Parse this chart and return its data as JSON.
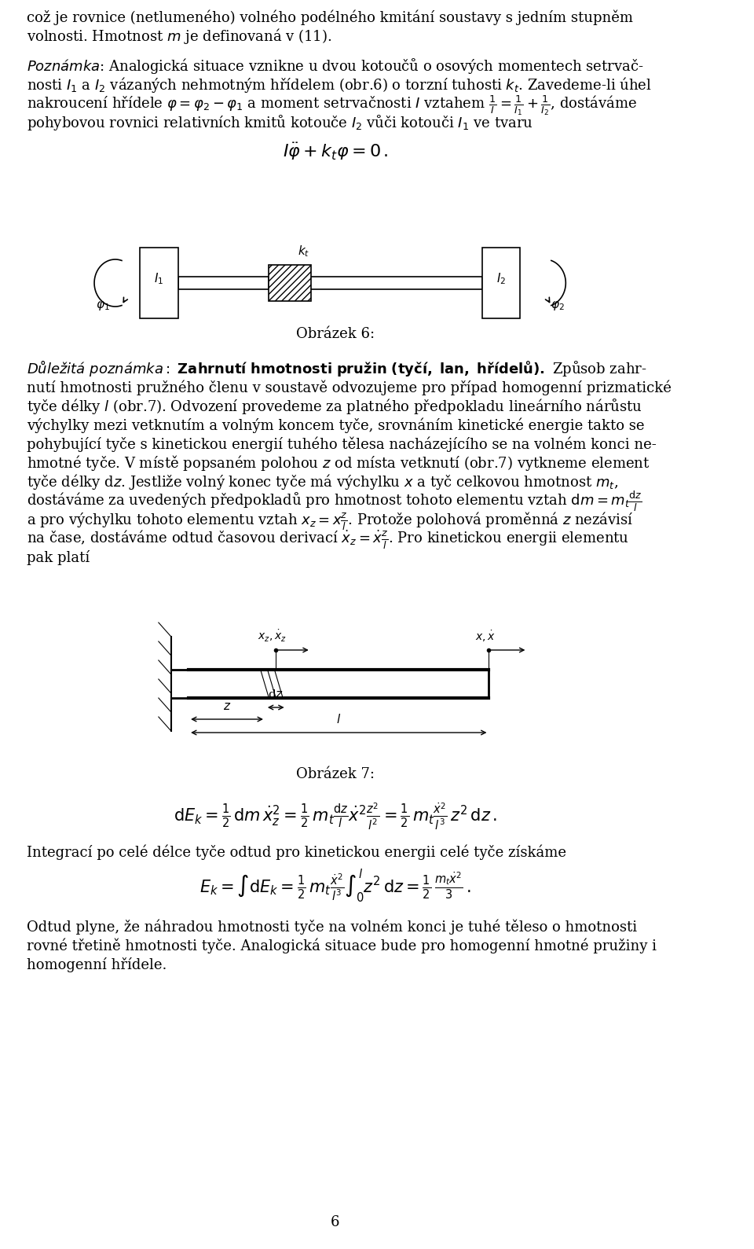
{
  "background_color": "#ffffff",
  "text_color": "#000000",
  "page_width": 9.6,
  "page_height": 15.89,
  "paragraph1": "což je rovnice (netlumeného) volného podélného kmitání soustavy s jedním stupněm",
  "paragraph1b": "volnosti. Hmotnost $m$ je definovaná v (11).",
  "paragraph2_italic": "Poznámka",
  "paragraph2": ": Analogická situace vznikne u dvou kotoučů o osových momentech setrvač-",
  "paragraph2b": "nosti $I_1$ a $I_2$ vázaných nehmotnou hřídelem (obr.6) o torzní tuhosti $k_t$. Zavedeme-li úhel",
  "paragraph2c": "nakrouceční hřídele $\\varphi = \\varphi_2 - \\varphi_1$ a moment setrvačnosti $I$ vztahem $\\frac{1}{I} = \\frac{1}{I_1} + \\frac{1}{I_2}$, dosťáváme",
  "paragraph2d": "pohybovou rovnici relativních kmitů kotouče $I_2$ vůči kotouči $I_1$ ve tvaru",
  "equation1": "$I\\ddot{\\varphi} + k_t\\varphi = 0\\,.$",
  "figure6_caption": "Obrázek 6:",
  "note_italic": "Důležitá poznámka:",
  "note_bold": " Zahrnoutí hmotnosti pružin (tyčí, lan, hřídelů).",
  "note_text": " Způsob zahrnutí hmotnosti pružného členu v soustavě odvodíme pro případ homogenní prizmatické",
  "note_text2": "tyče délky $l$ (obr.7). Odvození provedeme za platného předpokladu lineárního nárůstu",
  "note_text3": "výchylky mezi vetknutím a volným koncem tyče, srovnáním kinetické energie takto se",
  "note_text4": "pohybující tyče s kinetickou energií tuhého tělesa nacházejícího se na volném konci ne-",
  "note_text5": "hmotné tyče. V místě popsáném polohou $z$ od místa vetknutí (obr.7) vytkneme element",
  "note_text6": "tyče délky d$z$. Jestliže volný konec tyče má výchylku $x$ a tyč celkovou hmotnost $m_t$,",
  "note_text7": "dosťáváme za uvedených předpokladů pro hmotnost tohoto elementu vztah d$m = m_t \\frac{\\mathrm{d}z}{l}$",
  "note_text8": "a pro výchylku tohoto elementu vztah $x_z = x\\frac{z}{l}$. Protože poloková proměnná $z$ nezávisí",
  "note_text9": "na čase, dosťáváme odtud časovou derivací $\\dot{x}_z = \\dot{x}\\frac{z}{l}$. Pro kinetickou energii elementu",
  "note_text10": "pak platí",
  "equation2": "$\\mathrm{d}E_k = \\frac{1}{2}\\,\\mathrm{d}m\\,\\dot{x}_z^2 = \\frac{1}{2}\\,m_t\\frac{\\mathrm{d}z}{l}\\dot{x}^2\\frac{z^2}{l^2} = \\frac{1}{2}\\,m_t\\frac{\\dot{x}^2}{l^3}\\,z^2\\,\\mathrm{d}z\\,.$",
  "paragraph_integ": "Integrací po celé délce tyče odtud pro kinetickou energii celé tyče získáme",
  "equation3": "$E_k = \\int \\mathrm{d}E_k = \\frac{1}{2}\\,m_t\\frac{\\dot{x}^2}{l^3}\\int_0^l z^2\\,\\mathrm{d}z = \\frac{1}{2}\\,\\frac{m_t\\dot{x}^2}{3}\\,.$",
  "paragraph_final": "Odtud plyne, že náhradou hmotnosti tyče na volném konci je tuhé těleso o hmotnosti",
  "paragraph_final2": "rovné třetině hmotnosti tyče. Analogická situace bude pro homogenní hmotné pružiny i",
  "paragraph_final3": "homogenní hřídele.",
  "page_number": "6",
  "font_size_main": 13,
  "font_size_small": 11
}
